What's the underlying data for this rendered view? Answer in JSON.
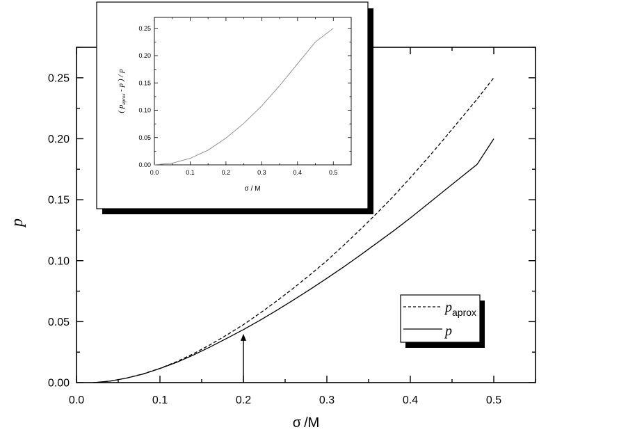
{
  "chart_data": [
    {
      "id": "main",
      "type": "line",
      "xlabel_symbol": "σ",
      "xlabel_unit": "/M",
      "ylabel": "p",
      "xlim": [
        0.0,
        0.55
      ],
      "ylim": [
        0.0,
        0.275
      ],
      "xticks": [
        "0.0",
        "0.1",
        "0.2",
        "0.3",
        "0.4",
        "0.5"
      ],
      "yticks": [
        "0.00",
        "0.05",
        "0.10",
        "0.15",
        "0.20",
        "0.25"
      ],
      "legend_position": "lower-right",
      "annotation": {
        "type": "arrow",
        "x": 0.2,
        "y_from": 0.0,
        "y_to": 0.04
      },
      "series": [
        {
          "name_main": "p",
          "name_sub": "aprox",
          "style": "dashed",
          "color": "#000000",
          "x": [
            0.02,
            0.04,
            0.06,
            0.08,
            0.1,
            0.12,
            0.14,
            0.16,
            0.18,
            0.2,
            0.22,
            0.24,
            0.26,
            0.28,
            0.3,
            0.32,
            0.34,
            0.36,
            0.38,
            0.4,
            0.42,
            0.44,
            0.46,
            0.48,
            0.5
          ],
          "y": [
            0.0,
            0.0012,
            0.0037,
            0.0072,
            0.0117,
            0.0172,
            0.0237,
            0.031,
            0.039,
            0.0475,
            0.057,
            0.067,
            0.0775,
            0.0885,
            0.1,
            0.1125,
            0.1255,
            0.139,
            0.153,
            0.168,
            0.1835,
            0.1995,
            0.216,
            0.2325,
            0.25
          ]
        },
        {
          "name_main": "p",
          "name_sub": "",
          "style": "solid",
          "color": "#000000",
          "x": [
            0.02,
            0.04,
            0.06,
            0.08,
            0.1,
            0.12,
            0.14,
            0.16,
            0.18,
            0.2,
            0.22,
            0.24,
            0.26,
            0.28,
            0.3,
            0.32,
            0.34,
            0.36,
            0.38,
            0.4,
            0.42,
            0.44,
            0.46,
            0.48,
            0.5
          ],
          "y": [
            0.0,
            0.0012,
            0.0037,
            0.0071,
            0.0115,
            0.0166,
            0.0226,
            0.0292,
            0.0363,
            0.0435,
            0.0512,
            0.0593,
            0.0678,
            0.0765,
            0.0855,
            0.0948,
            0.1045,
            0.1145,
            0.1245,
            0.135,
            0.146,
            0.157,
            0.168,
            0.179,
            0.2
          ]
        }
      ]
    },
    {
      "id": "inset",
      "type": "line",
      "xlabel_symbol": "σ",
      "xlabel_unit": "/ M",
      "ylabel_parts": [
        "( p",
        "aprox",
        " - p ) / p"
      ],
      "xlim": [
        0.0,
        0.55
      ],
      "ylim": [
        0.0,
        0.27
      ],
      "xticks": [
        "0.0",
        "0.1",
        "0.2",
        "0.3",
        "0.4",
        "0.5"
      ],
      "yticks": [
        "0.00",
        "0.05",
        "0.10",
        "0.15",
        "0.20",
        "0.25"
      ],
      "series": [
        {
          "style": "solid",
          "color": "#888888",
          "x": [
            0.0,
            0.05,
            0.1,
            0.15,
            0.2,
            0.25,
            0.3,
            0.35,
            0.4,
            0.45,
            0.5
          ],
          "y": [
            0.0,
            0.003,
            0.012,
            0.027,
            0.049,
            0.076,
            0.108,
            0.145,
            0.185,
            0.225,
            0.25
          ]
        }
      ]
    }
  ]
}
